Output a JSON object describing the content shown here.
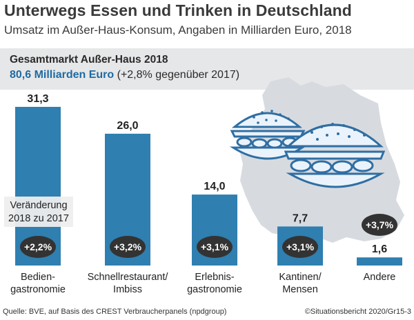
{
  "header": {
    "title": "Unterwegs Essen und Trinken in Deutschland",
    "subtitle": "Umsatz im Außer-Haus-Konsum, Angaben in Milliarden Euro, 2018"
  },
  "banner": {
    "title": "Gesamtmarkt Außer-Haus 2018",
    "value": "80,6 Milliarden Euro",
    "change": "(+2,8% gegenüber 2017)"
  },
  "chart_data": {
    "type": "bar",
    "title": "Umsatz im Außer-Haus-Konsum, Angaben in Milliarden Euro, 2018",
    "ylabel": "Milliarden Euro",
    "ylim": [
      0,
      35
    ],
    "grid": false,
    "categories": [
      [
        "Bedien-",
        "gastronomie"
      ],
      [
        "Schnellrestaurant/",
        "Imbiss"
      ],
      [
        "Erlebnis-",
        "gastronomie"
      ],
      [
        "Kantinen/",
        "Mensen"
      ],
      [
        "Andere"
      ]
    ],
    "values": [
      31.3,
      26.0,
      14.0,
      7.7,
      1.6
    ],
    "value_labels": [
      "31,3",
      "26,0",
      "14,0",
      "7,7",
      "1,6"
    ],
    "change_labels": [
      "+2,2%",
      "+3,2%",
      "+3,1%",
      "+3,1%",
      "+3,7%"
    ],
    "change_note": [
      "Veränderung",
      "2018 zu 2017"
    ],
    "colors": {
      "bar": "#2f7fb0",
      "badge": "#333333",
      "badge_text": "#ffffff",
      "map": "#d7dbe0",
      "burger_fill": "#eaf3fb",
      "burger_stroke": "#2f6ea3"
    }
  },
  "footer": {
    "source": "Quelle: BVE, auf Basis des CREST Verbraucherpanels (npdgroup)",
    "credit": "©Situationsbericht 2020/Gr15-3"
  }
}
